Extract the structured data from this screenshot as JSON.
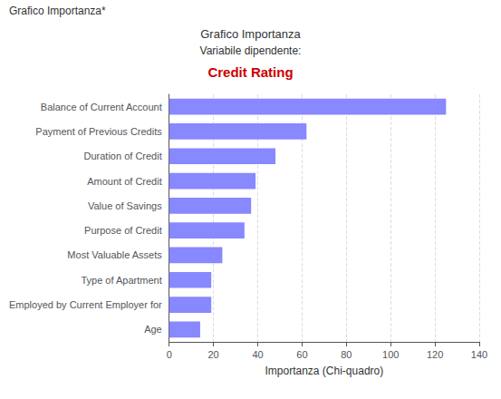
{
  "chart_data": {
    "type": "bar",
    "orientation": "horizontal",
    "title": "Grafico Importanza",
    "subtitle": "Variabile dipendente:",
    "annotations": [
      {
        "text": "Grafico Importanza*"
      },
      {
        "text": "Credit Rating",
        "color": "#cc0000"
      }
    ],
    "xlabel": "Importanza (Chi-quadro)",
    "categories": [
      "Balance of Current Account",
      "Payment of Previous Credits",
      "Duration of Credit",
      "Amount of Credit",
      "Value of Savings",
      "Purpose of Credit",
      "Most Valuable Assets",
      "Type of Apartment",
      "Employed by Current Employer for",
      "Age"
    ],
    "values": [
      125,
      62,
      48,
      39,
      37,
      34,
      24,
      19,
      19,
      14
    ],
    "color": "#8888ff",
    "xlim": [
      0,
      140
    ],
    "xticks": [
      0,
      20,
      40,
      60,
      80,
      100,
      120,
      140
    ],
    "grid": true
  }
}
